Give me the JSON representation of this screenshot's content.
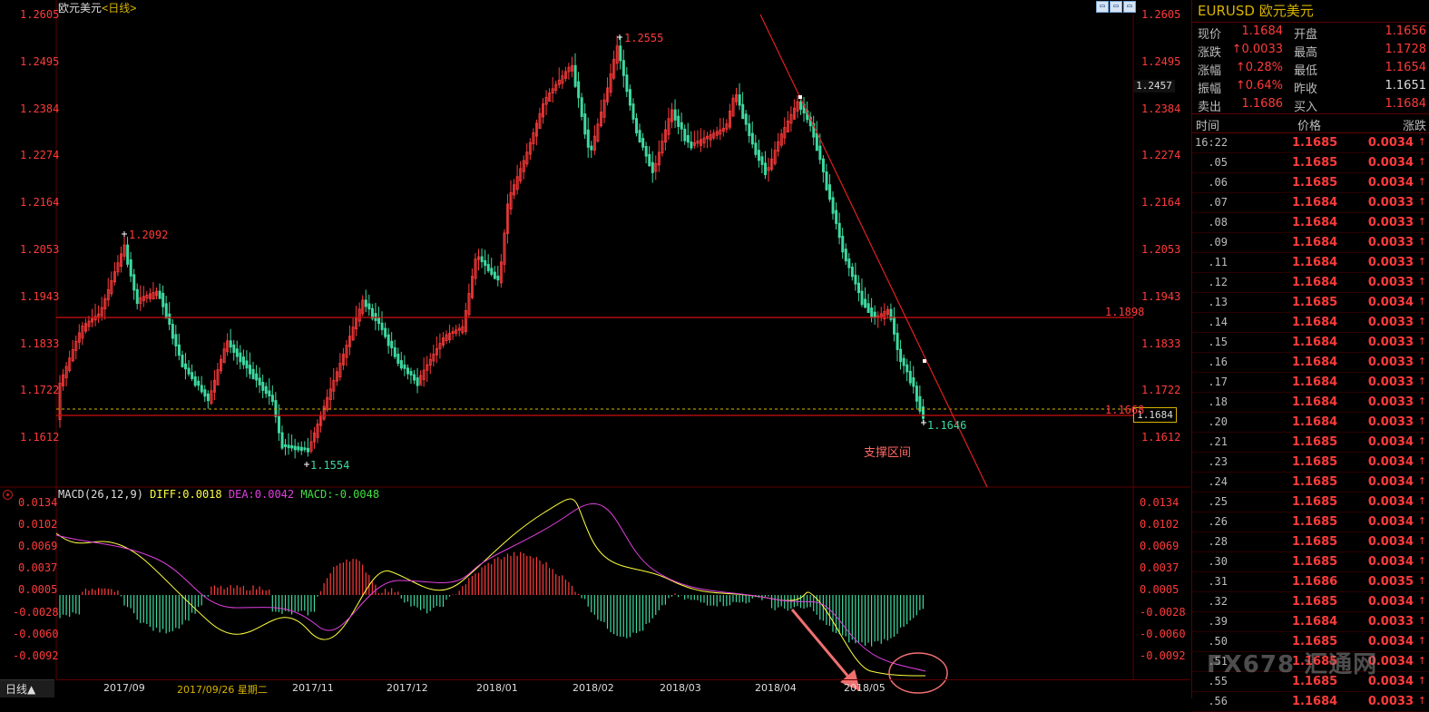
{
  "header": {
    "symbol_title": "欧元美元",
    "period_label": "<日线>"
  },
  "window_buttons": [
    "▭",
    "▭",
    "▭"
  ],
  "price_axis": {
    "labels": [
      "1.2605",
      "1.2495",
      "1.2384",
      "1.2274",
      "1.2164",
      "1.2053",
      "1.1943",
      "1.1833",
      "1.1722",
      "1.1612"
    ],
    "macd_labels": [
      "0.0134",
      "0.0102",
      "0.0069",
      "0.0037",
      "0.0005",
      "-0.0028",
      "-0.0060",
      "-0.0092"
    ]
  },
  "price_tag": "1.2457",
  "current_price_tag": "1.1684",
  "annotations": {
    "high": "1.2555",
    "left_high": "1.2092",
    "low": "1.1554",
    "recent_low": "1.1646",
    "resistance_level": "1.1898",
    "support_level": "1.1668",
    "support_zone_text": "支撑区间"
  },
  "macd_legend": {
    "name": "MACD(26,12,9)",
    "diff": "DIFF:0.0018",
    "dea": "DEA:0.0042",
    "macd": "MACD:-0.0048"
  },
  "x_axis": {
    "period_button": "日线▲",
    "cursor_date": "2017/09/26 星期二",
    "ticks": [
      "2017/09",
      "2017/11",
      "2017/12",
      "2018/01",
      "2018/02",
      "2018/03",
      "2018/04",
      "2018/05"
    ]
  },
  "quote": {
    "title": "EURUSD 欧元美元",
    "rows": [
      {
        "l1": "现价",
        "v1": "1.1684",
        "l2": "开盘",
        "v2": "1.1656"
      },
      {
        "l1": "涨跌",
        "v1": "0.0033",
        "l2": "最高",
        "v2": "1.1728"
      },
      {
        "l1": "涨幅",
        "v1": "0.28%",
        "l2": "最低",
        "v2": "1.1654"
      },
      {
        "l1": "振幅",
        "v1": "0.64%",
        "l2": "昨收",
        "v2": "1.1651"
      },
      {
        "l1": "卖出",
        "v1": "1.1686",
        "l2": "买入",
        "v2": "1.1684"
      }
    ],
    "tick_headers": {
      "time": "时间",
      "price": "价格",
      "change": "涨跌"
    },
    "ticks": [
      {
        "t": "16:22",
        "p": "1.1685",
        "c": "0.0034"
      },
      {
        "t": ".05",
        "p": "1.1685",
        "c": "0.0034"
      },
      {
        "t": ".06",
        "p": "1.1685",
        "c": "0.0034"
      },
      {
        "t": ".07",
        "p": "1.1684",
        "c": "0.0033"
      },
      {
        "t": ".08",
        "p": "1.1684",
        "c": "0.0033"
      },
      {
        "t": ".09",
        "p": "1.1684",
        "c": "0.0033"
      },
      {
        "t": ".11",
        "p": "1.1684",
        "c": "0.0033"
      },
      {
        "t": ".12",
        "p": "1.1684",
        "c": "0.0033"
      },
      {
        "t": ".13",
        "p": "1.1685",
        "c": "0.0034"
      },
      {
        "t": ".14",
        "p": "1.1684",
        "c": "0.0033"
      },
      {
        "t": ".15",
        "p": "1.1684",
        "c": "0.0033"
      },
      {
        "t": ".16",
        "p": "1.1684",
        "c": "0.0033"
      },
      {
        "t": ".17",
        "p": "1.1684",
        "c": "0.0033"
      },
      {
        "t": ".18",
        "p": "1.1684",
        "c": "0.0033"
      },
      {
        "t": ".20",
        "p": "1.1684",
        "c": "0.0033"
      },
      {
        "t": ".21",
        "p": "1.1685",
        "c": "0.0034"
      },
      {
        "t": ".23",
        "p": "1.1685",
        "c": "0.0034"
      },
      {
        "t": ".24",
        "p": "1.1685",
        "c": "0.0034"
      },
      {
        "t": ".25",
        "p": "1.1685",
        "c": "0.0034"
      },
      {
        "t": ".26",
        "p": "1.1685",
        "c": "0.0034"
      },
      {
        "t": ".28",
        "p": "1.1685",
        "c": "0.0034"
      },
      {
        "t": ".30",
        "p": "1.1685",
        "c": "0.0034"
      },
      {
        "t": ".31",
        "p": "1.1686",
        "c": "0.0035"
      },
      {
        "t": ".32",
        "p": "1.1685",
        "c": "0.0034"
      },
      {
        "t": ".39",
        "p": "1.1684",
        "c": "0.0033"
      },
      {
        "t": ".50",
        "p": "1.1685",
        "c": "0.0034"
      },
      {
        "t": ".51",
        "p": "1.1685",
        "c": "0.0034"
      },
      {
        "t": ".55",
        "p": "1.1685",
        "c": "0.0034"
      },
      {
        "t": ".56",
        "p": "1.1684",
        "c": "0.0033"
      }
    ]
  },
  "watermark": "FX678 汇通网",
  "colors": {
    "up": "#ff3b3b",
    "down": "#3ed9a0",
    "diff": "#ffff40",
    "dea": "#e040e0",
    "macd_label": "#40e040"
  }
}
